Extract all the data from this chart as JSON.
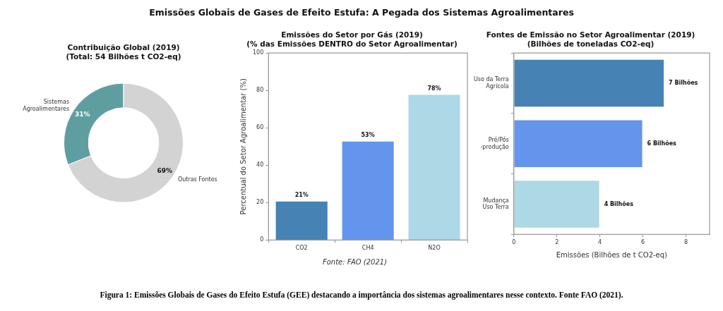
{
  "chart_data": [
    {
      "type": "donut",
      "title": "Contribuição Global (2019)\n(Total: 54 Bilhões t CO2-eq)",
      "categories": [
        "Sistemas\nAgroalimentares",
        "Outras Fontes"
      ],
      "values": [
        31,
        69
      ],
      "colors": [
        "#5f9ea0",
        "#d3d3d3"
      ],
      "value_labels": [
        "31%",
        "69%"
      ]
    },
    {
      "type": "bar",
      "title": "Emissões do Setor por Gás (2019)\n(% das Emissões DENTRO do Setor Agroalimentar)",
      "ylabel": "Percentual do Setor Agroalimentar (%)",
      "categories": [
        "CO2",
        "CH4",
        "N2O"
      ],
      "values": [
        21,
        53,
        78
      ],
      "colors": [
        "#4682b4",
        "#6495ed",
        "#add8e6"
      ],
      "value_labels": [
        "21%",
        "53%",
        "78%"
      ],
      "ylim": [
        0,
        100
      ],
      "yticks": [
        0,
        20,
        40,
        60,
        80,
        100
      ],
      "annotations": [
        "Fonte: FAO (2021)"
      ]
    },
    {
      "type": "bar",
      "orientation": "horizontal",
      "title": "Fontes de Emissão no Setor Agroalimentar (2019)\n(Bilhões de toneladas CO2-eq)",
      "xlabel": "Emissões (Bilhões de t CO2-eq)",
      "categories": [
        "Uso da Terra\nAgrícola",
        "Pré/Pós\n-produção",
        "Mudança\nUso Terra"
      ],
      "values": [
        7,
        6,
        4
      ],
      "colors": [
        "#4682b4",
        "#6495ed",
        "#add8e6"
      ],
      "value_labels": [
        "7 Bilhões",
        "6 Bilhões",
        "4 Bilhões"
      ],
      "xlim": [
        0,
        9.1
      ],
      "xticks": [
        0,
        2,
        4,
        6,
        8
      ]
    },
    {
      "type": "other",
      "title": "Emissões Globais de Gases de Efeito Estufa: A Pegada dos Sistemas Agroalimentares",
      "annotations": [
        "Figura 1: Emissões Globais de Gases do Efeito Estufa (GEE) destacando a importância dos sistemas agroalimentares nesse contexto. Fonte FAO (2021)."
      ]
    }
  ]
}
